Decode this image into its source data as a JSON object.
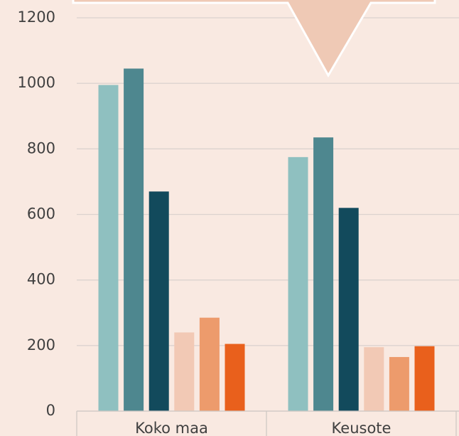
{
  "chart_data": {
    "type": "bar",
    "categories": [
      "Koko maa",
      "Keusote"
    ],
    "series": [
      {
        "color": "#8fc0c0",
        "values": [
          995,
          775
        ]
      },
      {
        "color": "#4e878f",
        "values": [
          1045,
          835
        ]
      },
      {
        "color": "#124a5c",
        "values": [
          670,
          620
        ]
      },
      {
        "color": "#f2c9b5",
        "values": [
          240,
          195
        ]
      },
      {
        "color": "#ed9b6c",
        "values": [
          285,
          165
        ]
      },
      {
        "color": "#e9601c",
        "values": [
          205,
          198
        ]
      }
    ],
    "ylim": [
      0,
      1200
    ],
    "yticks": [
      0,
      200,
      400,
      600,
      800,
      1000,
      1200
    ],
    "grid": true
  }
}
